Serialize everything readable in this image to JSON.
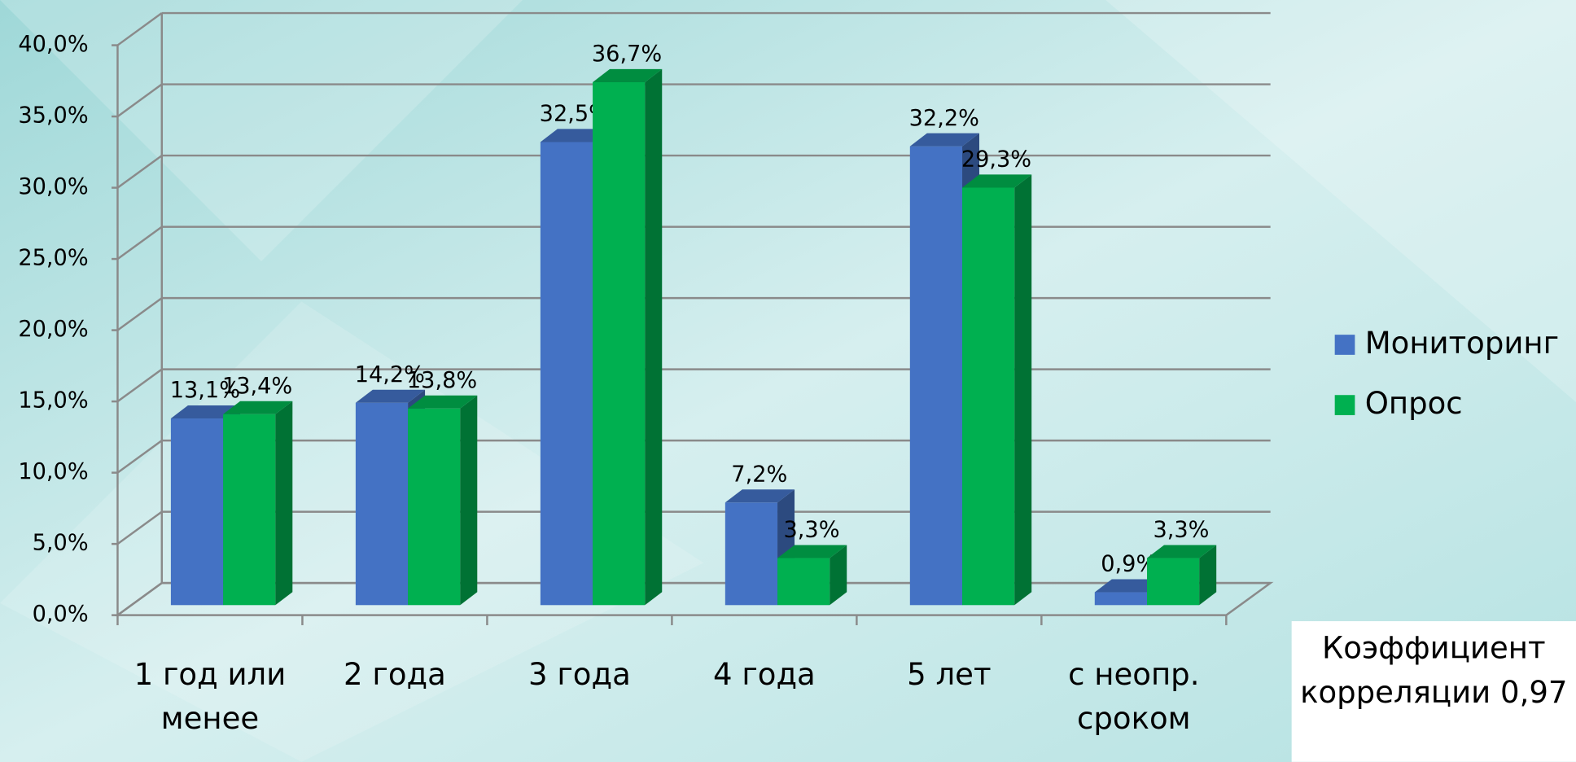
{
  "chart_data": {
    "type": "bar3d",
    "categories": [
      "1 год или менее",
      "2 года",
      "3 года",
      "4 года",
      "5 лет",
      "с неопр. сроком"
    ],
    "series": [
      {
        "name": "Мониторинг",
        "color": "#4472c4",
        "values": [
          13.1,
          14.2,
          32.5,
          7.2,
          32.2,
          0.9
        ],
        "value_labels": [
          "13,1%",
          "14,2%",
          "32,5%",
          "7,2%",
          "32,2%",
          "0,9%"
        ]
      },
      {
        "name": "Опрос",
        "color": "#00b050",
        "values": [
          13.4,
          13.8,
          36.7,
          3.3,
          29.3,
          3.3
        ],
        "value_labels": [
          "13,4%",
          "13,8%",
          "36,7%",
          "3,3%",
          "29,3%",
          "3,3%"
        ]
      }
    ],
    "ylim": [
      0,
      40
    ],
    "yticks": [
      {
        "value": 0,
        "label": "0,0%"
      },
      {
        "value": 5,
        "label": "5,0%"
      },
      {
        "value": 10,
        "label": "10,0%"
      },
      {
        "value": 15,
        "label": "15,0%"
      },
      {
        "value": 20,
        "label": "20,0%"
      },
      {
        "value": 25,
        "label": "25,0%"
      },
      {
        "value": 30,
        "label": "30,0%"
      },
      {
        "value": 35,
        "label": "35,0%"
      },
      {
        "value": 40,
        "label": "40,0%"
      }
    ],
    "grid": true,
    "legend": "right",
    "annotation": "Коэффициент корреляции 0,97"
  }
}
